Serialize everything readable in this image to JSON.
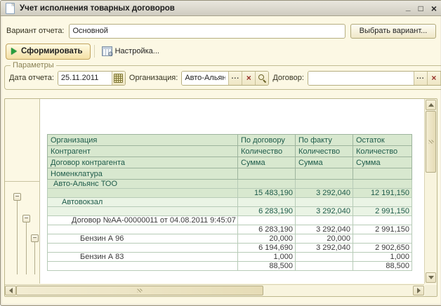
{
  "window": {
    "title": "Учет исполнения товарных договоров",
    "minimize_glyph": "_",
    "maximize_glyph": "□",
    "close_glyph": "×"
  },
  "variant_bar": {
    "label": "Вариант отчета:",
    "value": "Основной",
    "choose_button": "Выбрать вариант..."
  },
  "toolbar": {
    "generate_label": "Сформировать",
    "settings_label": "Настройка..."
  },
  "parameters": {
    "legend": "Параметры",
    "date_label": "Дата отчета:",
    "date_value": "25.11.2011",
    "org_label": "Организация:",
    "org_value": "Авто-Альянс ТО",
    "contract_label": "Договор:",
    "contract_value": "",
    "select_glyph": "...",
    "clear_glyph": "×"
  },
  "report": {
    "tree": {
      "collapse_glyph": "−"
    },
    "table": {
      "row_headers": [
        "Организация",
        "Контрагент",
        "Договор контрагента",
        "Номенклатура"
      ],
      "columns": [
        "По договору",
        "По факту",
        "Остаток"
      ],
      "sub_headers": [
        "Количество",
        "Сумма",
        ""
      ],
      "rows": [
        {
          "label": "Авто-Альянс ТОО",
          "indent": 0,
          "style": "g1",
          "block": true,
          "values": [
            "",
            "",
            ""
          ]
        },
        {
          "label": "",
          "indent": 0,
          "style": "g1",
          "block": false,
          "values": [
            "15 483,190",
            "3 292,040",
            "12 191,150"
          ]
        },
        {
          "label": "Автовокзал",
          "indent": 1,
          "style": "g2",
          "block": true,
          "values": [
            "",
            "",
            ""
          ]
        },
        {
          "label": "",
          "indent": 1,
          "style": "g2",
          "block": false,
          "values": [
            "6 283,190",
            "3 292,040",
            "2 991,150"
          ]
        },
        {
          "label": "Договор №АА-00000011 от 04.08.2011 9:45:07",
          "indent": 2,
          "style": "plain",
          "block": true,
          "values": [
            "",
            "",
            ""
          ]
        },
        {
          "label": "",
          "indent": 2,
          "style": "plain",
          "block": false,
          "values": [
            "6 283,190",
            "3 292,040",
            "2 991,150"
          ]
        },
        {
          "label": "Бензин А 96",
          "indent": 3,
          "style": "plain",
          "block": true,
          "values": [
            "20,000",
            "20,000",
            ""
          ]
        },
        {
          "label": "",
          "indent": 3,
          "style": "plain",
          "block": false,
          "values": [
            "6 194,690",
            "3 292,040",
            "2 902,650"
          ]
        },
        {
          "label": "Бензин А 83",
          "indent": 3,
          "style": "plain",
          "block": true,
          "values": [
            "1,000",
            "",
            "1,000"
          ]
        },
        {
          "label": "",
          "indent": 3,
          "style": "plain",
          "block": false,
          "values": [
            "88,500",
            "",
            "88,500"
          ]
        }
      ]
    }
  }
}
